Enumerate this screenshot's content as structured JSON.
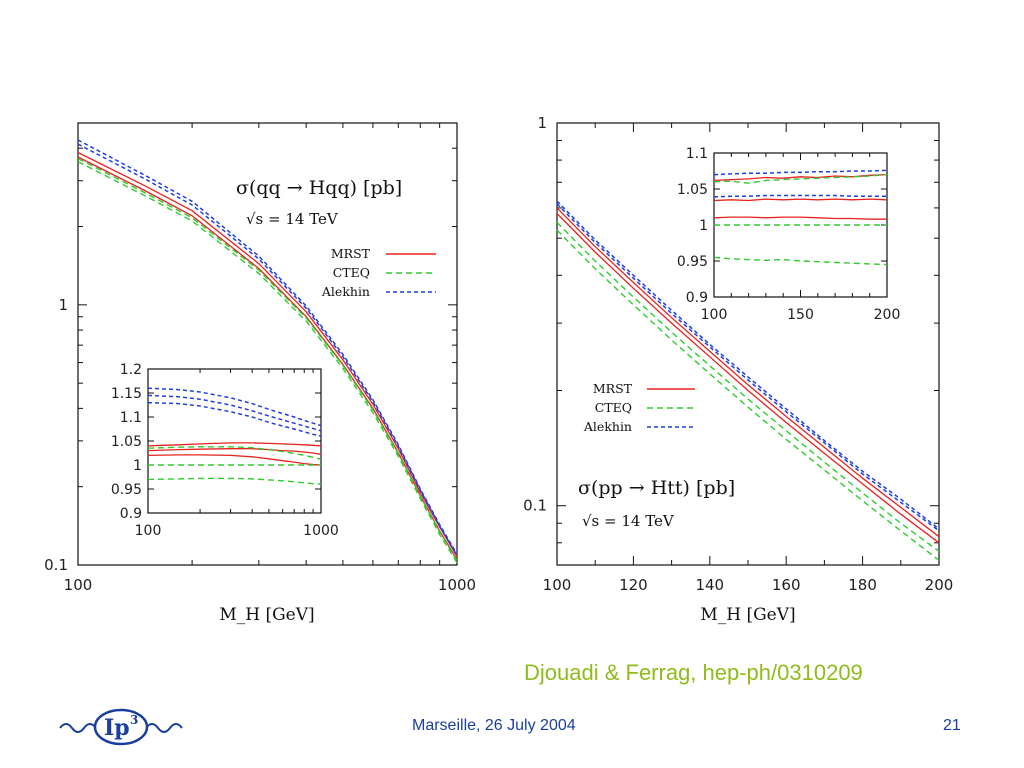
{
  "colors": {
    "mrst": "#e8231e",
    "cteq": "#2ecc2e",
    "alekhin": "#1f3fe0",
    "citation": "#8fbc1c",
    "footer": "#1a3ea0"
  },
  "footer": {
    "citation": "Djouadi & Ferrag, hep-ph/0310209",
    "center": "Marseille, 26 July 2004",
    "page": "21"
  },
  "logo": {
    "text": "Ip",
    "superscript": "3"
  },
  "chart_data": [
    {
      "type": "line",
      "log_x": true,
      "log_y": true,
      "xlim": [
        100,
        1000
      ],
      "ylim": [
        0.1,
        5
      ],
      "xlabel": "M_H [GeV]",
      "title": "σ(qq → Hqq) [pb]",
      "subtitle": "√s = 14 TeV",
      "x_ticks": [
        "100",
        "1000"
      ],
      "y_ticks": [
        "0.1",
        "1"
      ],
      "legend": [
        "MRST",
        "CTEQ",
        "Alekhin"
      ],
      "legend_position": "right",
      "x": [
        100,
        150,
        200,
        300,
        400,
        500,
        600,
        700,
        800,
        900,
        1000
      ],
      "series": [
        {
          "name": "MRST",
          "style": "solid",
          "values": [
            3.7,
            2.75,
            2.2,
            1.38,
            0.9,
            0.59,
            0.4,
            0.27,
            0.185,
            0.135,
            0.105
          ]
        },
        {
          "name": "MRST",
          "style": "solid",
          "values": [
            3.85,
            2.87,
            2.3,
            1.44,
            0.94,
            0.615,
            0.415,
            0.28,
            0.19,
            0.14,
            0.108
          ]
        },
        {
          "name": "CTEQ",
          "style": "dashed",
          "values": [
            3.55,
            2.63,
            2.1,
            1.32,
            0.865,
            0.57,
            0.385,
            0.262,
            0.18,
            0.131,
            0.102
          ]
        },
        {
          "name": "CTEQ",
          "style": "dashed",
          "values": [
            3.65,
            2.7,
            2.16,
            1.36,
            0.89,
            0.585,
            0.395,
            0.268,
            0.184,
            0.134,
            0.104
          ]
        },
        {
          "name": "Alekhin",
          "style": "dotted",
          "values": [
            4.3,
            3.15,
            2.5,
            1.54,
            0.99,
            0.645,
            0.432,
            0.29,
            0.196,
            0.143,
            0.11
          ]
        },
        {
          "name": "Alekhin",
          "style": "dotted",
          "values": [
            4.15,
            3.05,
            2.42,
            1.5,
            0.97,
            0.632,
            0.425,
            0.286,
            0.194,
            0.141,
            0.109
          ]
        }
      ],
      "inset": {
        "log_x": true,
        "xlim": [
          100,
          1000
        ],
        "ylim": [
          0.9,
          1.2
        ],
        "x_ticks": [
          "100",
          "1000"
        ],
        "y_ticks": [
          "0.9",
          "0.95",
          "1",
          "1.05",
          "1.1",
          "1.15",
          "1.2"
        ],
        "x": [
          100,
          150,
          200,
          300,
          400,
          500,
          600,
          700,
          800,
          900,
          1000
        ],
        "series": [
          {
            "name": "MRST",
            "style": "solid",
            "values": [
              1.04,
              1.042,
              1.044,
              1.046,
              1.046,
              1.045,
              1.044,
              1.043,
              1.042,
              1.041,
              1.04
            ]
          },
          {
            "name": "MRST",
            "style": "solid",
            "values": [
              1.03,
              1.032,
              1.033,
              1.034,
              1.034,
              1.032,
              1.03,
              1.029,
              1.027,
              1.025,
              1.022
            ]
          },
          {
            "name": "MRST",
            "style": "solid",
            "values": [
              1.02,
              1.021,
              1.021,
              1.02,
              1.017,
              1.013,
              1.009,
              1.006,
              1.003,
              1.001,
              1.0
            ]
          },
          {
            "name": "CTEQ",
            "style": "dashed",
            "values": [
              1.0,
              1.0,
              1.0,
              1.0,
              1.0,
              1.0,
              1.0,
              1.0,
              1.0,
              1.0,
              1.0
            ]
          },
          {
            "name": "CTEQ",
            "style": "dashed",
            "values": [
              1.035,
              1.037,
              1.038,
              1.038,
              1.036,
              1.032,
              1.028,
              1.024,
              1.02,
              1.016,
              1.012
            ]
          },
          {
            "name": "CTEQ",
            "style": "dashed",
            "values": [
              0.97,
              0.971,
              0.972,
              0.972,
              0.971,
              0.969,
              0.967,
              0.965,
              0.963,
              0.961,
              0.96
            ]
          },
          {
            "name": "Alekhin",
            "style": "dotted",
            "values": [
              1.16,
              1.157,
              1.152,
              1.14,
              1.128,
              1.116,
              1.107,
              1.1,
              1.093,
              1.087,
              1.082
            ]
          },
          {
            "name": "Alekhin",
            "style": "dotted",
            "values": [
              1.145,
              1.142,
              1.137,
              1.125,
              1.113,
              1.102,
              1.094,
              1.087,
              1.081,
              1.076,
              1.071
            ]
          },
          {
            "name": "Alekhin",
            "style": "dotted",
            "values": [
              1.13,
              1.128,
              1.123,
              1.111,
              1.1,
              1.089,
              1.081,
              1.075,
              1.069,
              1.064,
              1.06
            ]
          }
        ]
      }
    },
    {
      "type": "line",
      "log_x": false,
      "log_y": true,
      "xlim": [
        100,
        200
      ],
      "ylim": [
        0.07,
        1
      ],
      "xlabel": "M_H [GeV]",
      "title": "σ(pp → Htt) [pb]",
      "subtitle": "√s = 14 TeV",
      "x_ticks": [
        "100",
        "120",
        "140",
        "160",
        "180",
        "200"
      ],
      "y_ticks": [
        "0.1",
        "1"
      ],
      "legend": [
        "MRST",
        "CTEQ",
        "Alekhin"
      ],
      "legend_position": "center-left",
      "x": [
        100,
        110,
        120,
        130,
        140,
        150,
        160,
        170,
        180,
        190,
        200
      ],
      "series": [
        {
          "name": "MRST",
          "style": "solid",
          "values": [
            0.58,
            0.46,
            0.37,
            0.3,
            0.245,
            0.2,
            0.165,
            0.137,
            0.114,
            0.095,
            0.08
          ]
        },
        {
          "name": "MRST",
          "style": "solid",
          "values": [
            0.6,
            0.475,
            0.383,
            0.31,
            0.253,
            0.207,
            0.171,
            0.142,
            0.118,
            0.099,
            0.083
          ]
        },
        {
          "name": "CTEQ",
          "style": "dashed",
          "values": [
            0.55,
            0.436,
            0.351,
            0.284,
            0.232,
            0.19,
            0.157,
            0.13,
            0.108,
            0.09,
            0.076
          ]
        },
        {
          "name": "CTEQ",
          "style": "dashed",
          "values": [
            0.525,
            0.416,
            0.335,
            0.271,
            0.221,
            0.181,
            0.149,
            0.124,
            0.103,
            0.086,
            0.072
          ]
        },
        {
          "name": "Alekhin",
          "style": "dotted",
          "values": [
            0.615,
            0.487,
            0.393,
            0.318,
            0.26,
            0.213,
            0.176,
            0.146,
            0.121,
            0.102,
            0.086
          ]
        },
        {
          "name": "Alekhin",
          "style": "dotted",
          "values": [
            0.625,
            0.495,
            0.4,
            0.324,
            0.264,
            0.217,
            0.179,
            0.148,
            0.123,
            0.104,
            0.087
          ]
        }
      ],
      "inset": {
        "log_x": false,
        "xlim": [
          100,
          200
        ],
        "ylim": [
          0.9,
          1.1
        ],
        "x_ticks": [
          "100",
          "150",
          "200"
        ],
        "y_ticks": [
          "0.9",
          "0.95",
          "1",
          "1.05",
          "1.1"
        ],
        "x": [
          100,
          110,
          120,
          130,
          140,
          150,
          160,
          170,
          180,
          190,
          200
        ],
        "series": [
          {
            "name": "MRST",
            "style": "solid",
            "values": [
              1.062,
              1.063,
              1.064,
              1.066,
              1.065,
              1.067,
              1.066,
              1.068,
              1.067,
              1.069,
              1.07
            ]
          },
          {
            "name": "MRST",
            "style": "solid",
            "values": [
              1.034,
              1.035,
              1.034,
              1.036,
              1.035,
              1.036,
              1.035,
              1.036,
              1.035,
              1.036,
              1.035
            ]
          },
          {
            "name": "MRST",
            "style": "solid",
            "values": [
              1.01,
              1.011,
              1.011,
              1.01,
              1.011,
              1.011,
              1.01,
              1.009,
              1.009,
              1.008,
              1.008
            ]
          },
          {
            "name": "CTEQ",
            "style": "dashed",
            "values": [
              1.0,
              1.0,
              1.0,
              1.0,
              1.0,
              1.0,
              1.0,
              1.0,
              1.0,
              1.0,
              1.0
            ]
          },
          {
            "name": "CTEQ",
            "style": "dashed",
            "values": [
              1.06,
              1.061,
              1.058,
              1.062,
              1.063,
              1.064,
              1.065,
              1.066,
              1.067,
              1.068,
              1.07
            ]
          },
          {
            "name": "CTEQ",
            "style": "dashed",
            "values": [
              0.955,
              0.953,
              0.952,
              0.951,
              0.952,
              0.95,
              0.949,
              0.948,
              0.947,
              0.946,
              0.945
            ]
          },
          {
            "name": "Alekhin",
            "style": "dotted",
            "values": [
              1.07,
              1.071,
              1.072,
              1.072,
              1.073,
              1.073,
              1.074,
              1.074,
              1.075,
              1.075,
              1.076
            ]
          },
          {
            "name": "Alekhin",
            "style": "dotted",
            "values": [
              1.039,
              1.04,
              1.04,
              1.041,
              1.041,
              1.041,
              1.041,
              1.041,
              1.04,
              1.04,
              1.04
            ]
          }
        ]
      }
    }
  ]
}
